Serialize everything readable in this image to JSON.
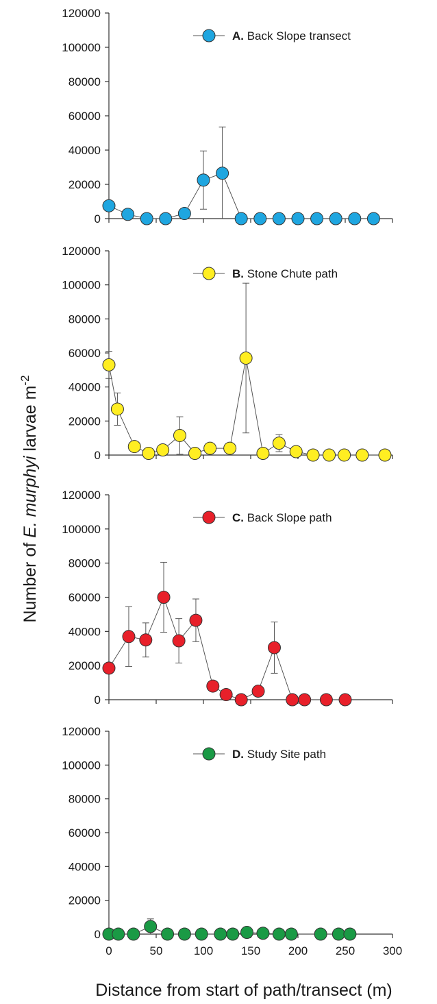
{
  "chart_data": [
    {
      "type": "scatter",
      "panel": "A",
      "legend_letter": "A.",
      "legend_label": "Back Slope transect",
      "color": "#1fa6e0",
      "ylim": [
        0,
        120000
      ],
      "yticks": [
        "0",
        "20000",
        "40000",
        "60000",
        "80000",
        "100000",
        "120000"
      ],
      "x": [
        0,
        20,
        40,
        60,
        80,
        100,
        120,
        140,
        160,
        180,
        200,
        220,
        240,
        260,
        280
      ],
      "y": [
        7500,
        2500,
        0,
        0,
        3000,
        22500,
        26500,
        0,
        0,
        0,
        0,
        0,
        0,
        0,
        0
      ],
      "err": [
        0,
        0,
        0,
        0,
        0,
        17000,
        27000,
        0,
        0,
        0,
        0,
        0,
        0,
        0,
        0
      ]
    },
    {
      "type": "scatter",
      "panel": "B",
      "legend_letter": "B.",
      "legend_label": "Stone Chute path",
      "color": "#ffee22",
      "ylim": [
        0,
        120000
      ],
      "yticks": [
        "0",
        "20000",
        "40000",
        "60000",
        "80000",
        "100000",
        "120000"
      ],
      "x": [
        0,
        9,
        27,
        42,
        57,
        75,
        91,
        107,
        128,
        145,
        163,
        180,
        198,
        216,
        233,
        249,
        268,
        292
      ],
      "y": [
        53000,
        27000,
        5000,
        1000,
        3000,
        11500,
        1000,
        4000,
        4000,
        57000,
        1000,
        7000,
        2000,
        0,
        0,
        0,
        0,
        0
      ],
      "err": [
        8000,
        9500,
        0,
        0,
        0,
        11000,
        0,
        0,
        0,
        44000,
        0,
        5000,
        0,
        0,
        0,
        0,
        0,
        0
      ]
    },
    {
      "type": "scatter",
      "panel": "C",
      "legend_letter": "C.",
      "legend_label": "Back Slope path",
      "color": "#e8202a",
      "ylim": [
        0,
        120000
      ],
      "yticks": [
        "0",
        "20000",
        "40000",
        "60000",
        "80000",
        "100000",
        "120000"
      ],
      "x": [
        0,
        21,
        39,
        58,
        74,
        92,
        110,
        124,
        140,
        158,
        175,
        194,
        207,
        230,
        250
      ],
      "y": [
        18500,
        37000,
        35000,
        60000,
        34500,
        46500,
        8000,
        3000,
        0,
        5000,
        30500,
        0,
        0,
        0,
        0
      ],
      "err": [
        0,
        17500,
        10000,
        20500,
        13000,
        12500,
        0,
        0,
        0,
        0,
        15000,
        0,
        0,
        0,
        0
      ]
    },
    {
      "type": "scatter",
      "panel": "D",
      "legend_letter": "D.",
      "legend_label": "Study Site path",
      "color": "#1a9a45",
      "ylim": [
        0,
        120000
      ],
      "yticks": [
        "0",
        "20000",
        "40000",
        "60000",
        "80000",
        "100000",
        "120000"
      ],
      "xlim": [
        0,
        300
      ],
      "xticks": [
        "0",
        "50",
        "100",
        "150",
        "200",
        "250",
        "300"
      ],
      "x": [
        0,
        10,
        26,
        44,
        62,
        80,
        98,
        118,
        131,
        146,
        163,
        180,
        193,
        224,
        243,
        255
      ],
      "y": [
        0,
        0,
        0,
        4500,
        0,
        0,
        0,
        0,
        0,
        1000,
        500,
        0,
        0,
        0,
        0,
        0
      ],
      "err": [
        0,
        0,
        0,
        4500,
        0,
        0,
        0,
        0,
        0,
        0,
        0,
        0,
        0,
        0,
        0,
        0
      ]
    }
  ],
  "y_axis_title": {
    "before": "Number of ",
    "italic": "E. murphyi",
    "after": " larvae m",
    "superscript": "-2"
  },
  "x_axis_title": "Distance from start of path/transect (m)"
}
